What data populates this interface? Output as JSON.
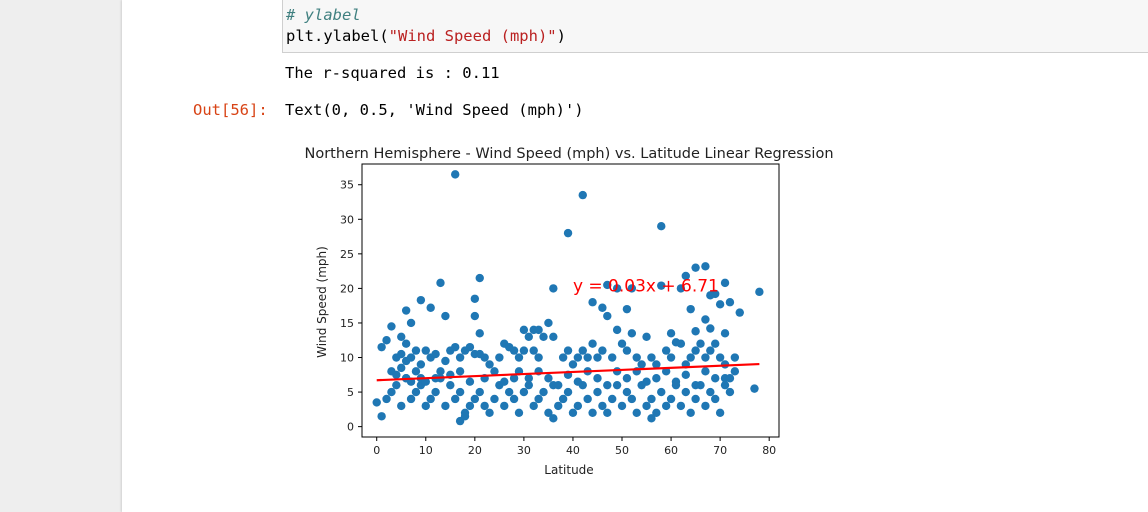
{
  "code": {
    "comment": "# ylabel",
    "line_prefix": "plt.ylabel(",
    "line_string": "\"Wind Speed (mph)\"",
    "line_suffix": ")"
  },
  "output": {
    "stdout": "The r-squared is : 0.11",
    "prompt": "Out[56]:",
    "result_text": "Text(0, 0.5, 'Wind Speed (mph)')"
  },
  "colors": {
    "points": "#1f77b4",
    "regression": "#ff0000",
    "prompt": "#d84315"
  },
  "chart_data": {
    "type": "scatter",
    "title": "Northern Hemisphere - Wind Speed (mph) vs. Latitude Linear Regression",
    "xlabel": "Latitude",
    "ylabel": "Wind Speed (mph)",
    "xlim": [
      -3,
      82
    ],
    "ylim": [
      -1.5,
      38
    ],
    "xticks": [
      0,
      10,
      20,
      30,
      40,
      50,
      60,
      70,
      80
    ],
    "yticks": [
      0,
      5,
      10,
      15,
      20,
      25,
      30,
      35
    ],
    "grid": false,
    "annotation": "y = 0.03x + 6.71",
    "regression": {
      "slope": 0.03,
      "intercept": 6.71,
      "x_range": [
        0,
        78
      ]
    },
    "points": [
      [
        16,
        36.5
      ],
      [
        42,
        33.5
      ],
      [
        39,
        28
      ],
      [
        58,
        29
      ],
      [
        78,
        19.5
      ],
      [
        13,
        20.8
      ],
      [
        21,
        21.5
      ],
      [
        65,
        23
      ],
      [
        67,
        23.2
      ],
      [
        63,
        21.8
      ],
      [
        62,
        20
      ],
      [
        58,
        20.4
      ],
      [
        52,
        20
      ],
      [
        47,
        20.5
      ],
      [
        49,
        20
      ],
      [
        44,
        18
      ],
      [
        46,
        17.2
      ],
      [
        69,
        19.2
      ],
      [
        72,
        18
      ],
      [
        70,
        17.7
      ],
      [
        68,
        19
      ],
      [
        71,
        20.8
      ],
      [
        74,
        16.5
      ],
      [
        36,
        20
      ],
      [
        9,
        18.3
      ],
      [
        11,
        17.2
      ],
      [
        6,
        16.8
      ],
      [
        14,
        16
      ],
      [
        20,
        16
      ],
      [
        20,
        18.5
      ],
      [
        64,
        17
      ],
      [
        67,
        15.5
      ],
      [
        68,
        14.2
      ],
      [
        71,
        13.5
      ],
      [
        65,
        13.8
      ],
      [
        60,
        13.5
      ],
      [
        61,
        12.2
      ],
      [
        47,
        16
      ],
      [
        49,
        14
      ],
      [
        51,
        17
      ],
      [
        52,
        13.5
      ],
      [
        55,
        13
      ],
      [
        32,
        14
      ],
      [
        33,
        14
      ],
      [
        35,
        15
      ],
      [
        30,
        14
      ],
      [
        31,
        13
      ],
      [
        34,
        13
      ],
      [
        36,
        13
      ],
      [
        3,
        14.5
      ],
      [
        2,
        12.5
      ],
      [
        1,
        11.5
      ],
      [
        5,
        13
      ],
      [
        6,
        12
      ],
      [
        7,
        15
      ],
      [
        4,
        10
      ],
      [
        5,
        10.5
      ],
      [
        6,
        9.5
      ],
      [
        7,
        10
      ],
      [
        9,
        9
      ],
      [
        8,
        11
      ],
      [
        10,
        11
      ],
      [
        11,
        10
      ],
      [
        12,
        10.5
      ],
      [
        14,
        9.5
      ],
      [
        15,
        11
      ],
      [
        16,
        11.5
      ],
      [
        17,
        10
      ],
      [
        18,
        11
      ],
      [
        19,
        11.5
      ],
      [
        20,
        10.5
      ],
      [
        21,
        10.5
      ],
      [
        21,
        13.5
      ],
      [
        22,
        10
      ],
      [
        23,
        9
      ],
      [
        25,
        10
      ],
      [
        26,
        12
      ],
      [
        27,
        11.5
      ],
      [
        28,
        11
      ],
      [
        29,
        10
      ],
      [
        30,
        11
      ],
      [
        32,
        11
      ],
      [
        33,
        10
      ],
      [
        38,
        10
      ],
      [
        39,
        11
      ],
      [
        40,
        9
      ],
      [
        41,
        10
      ],
      [
        42,
        11
      ],
      [
        43,
        10
      ],
      [
        44,
        12
      ],
      [
        45,
        10
      ],
      [
        46,
        11
      ],
      [
        48,
        10
      ],
      [
        50,
        12
      ],
      [
        51,
        11
      ],
      [
        53,
        10
      ],
      [
        54,
        9
      ],
      [
        56,
        10
      ],
      [
        57,
        9
      ],
      [
        59,
        11
      ],
      [
        60,
        10
      ],
      [
        62,
        12
      ],
      [
        63,
        9
      ],
      [
        64,
        10
      ],
      [
        65,
        11
      ],
      [
        66,
        12
      ],
      [
        67,
        10
      ],
      [
        68,
        11
      ],
      [
        69,
        12
      ],
      [
        70,
        10
      ],
      [
        71,
        9
      ],
      [
        73,
        10
      ],
      [
        2,
        4
      ],
      [
        3,
        5
      ],
      [
        4,
        6
      ],
      [
        5,
        3
      ],
      [
        6,
        7
      ],
      [
        7,
        4
      ],
      [
        8,
        5
      ],
      [
        9,
        6
      ],
      [
        10,
        3
      ],
      [
        11,
        4
      ],
      [
        12,
        5
      ],
      [
        13,
        7
      ],
      [
        14,
        3
      ],
      [
        15,
        6
      ],
      [
        16,
        4
      ],
      [
        17,
        5
      ],
      [
        18,
        2
      ],
      [
        19,
        3
      ],
      [
        20,
        4
      ],
      [
        21,
        5
      ],
      [
        22,
        3
      ],
      [
        23,
        2
      ],
      [
        24,
        4
      ],
      [
        25,
        6
      ],
      [
        26,
        3
      ],
      [
        27,
        5
      ],
      [
        28,
        4
      ],
      [
        29,
        2
      ],
      [
        30,
        5
      ],
      [
        31,
        7
      ],
      [
        32,
        3
      ],
      [
        33,
        4
      ],
      [
        34,
        5
      ],
      [
        35,
        2
      ],
      [
        36,
        6
      ],
      [
        37,
        3
      ],
      [
        38,
        4
      ],
      [
        39,
        5
      ],
      [
        40,
        2
      ],
      [
        41,
        3
      ],
      [
        42,
        6
      ],
      [
        43,
        4
      ],
      [
        44,
        2
      ],
      [
        45,
        5
      ],
      [
        46,
        3
      ],
      [
        47,
        2
      ],
      [
        48,
        4
      ],
      [
        49,
        6
      ],
      [
        50,
        3
      ],
      [
        51,
        5
      ],
      [
        52,
        4
      ],
      [
        53,
        2
      ],
      [
        54,
        6
      ],
      [
        55,
        3
      ],
      [
        56,
        4
      ],
      [
        57,
        2
      ],
      [
        58,
        5
      ],
      [
        59,
        3
      ],
      [
        60,
        4
      ],
      [
        61,
        6
      ],
      [
        62,
        3
      ],
      [
        63,
        5
      ],
      [
        64,
        2
      ],
      [
        65,
        4
      ],
      [
        66,
        6
      ],
      [
        67,
        3
      ],
      [
        68,
        5
      ],
      [
        69,
        4
      ],
      [
        70,
        2
      ],
      [
        71,
        7
      ],
      [
        72,
        5
      ],
      [
        73,
        8
      ],
      [
        77,
        5.5
      ],
      [
        0,
        3.5
      ],
      [
        1,
        1.5
      ],
      [
        17,
        0.8
      ],
      [
        18,
        1.5
      ],
      [
        36,
        1.2
      ],
      [
        56,
        1.2
      ],
      [
        3,
        8
      ],
      [
        4,
        7.5
      ],
      [
        5,
        8.5
      ],
      [
        6,
        7
      ],
      [
        7,
        6.5
      ],
      [
        8,
        8
      ],
      [
        9,
        7
      ],
      [
        10,
        6.5
      ],
      [
        12,
        7
      ],
      [
        13,
        8
      ],
      [
        15,
        7.5
      ],
      [
        17,
        8
      ],
      [
        19,
        6.5
      ],
      [
        22,
        7
      ],
      [
        24,
        8
      ],
      [
        26,
        6.5
      ],
      [
        28,
        7
      ],
      [
        29,
        8
      ],
      [
        31,
        6
      ],
      [
        33,
        8
      ],
      [
        35,
        7
      ],
      [
        37,
        6
      ],
      [
        39,
        7.5
      ],
      [
        41,
        6.5
      ],
      [
        43,
        8
      ],
      [
        45,
        7
      ],
      [
        47,
        6
      ],
      [
        49,
        8
      ],
      [
        51,
        7
      ],
      [
        53,
        8
      ],
      [
        55,
        6.5
      ],
      [
        57,
        7
      ],
      [
        59,
        8
      ],
      [
        61,
        6.5
      ],
      [
        63,
        7.5
      ],
      [
        65,
        6
      ],
      [
        67,
        8
      ],
      [
        69,
        7
      ],
      [
        71,
        6
      ],
      [
        72,
        7
      ]
    ]
  }
}
